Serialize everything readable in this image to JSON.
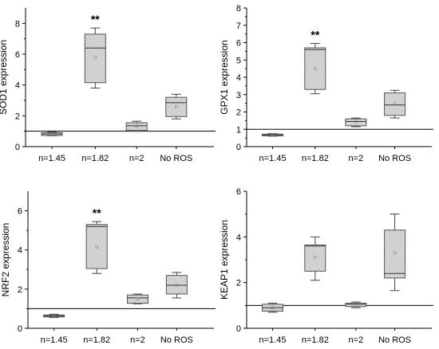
{
  "chart_data": [
    {
      "type": "box",
      "ylabel": "SOD1 expression",
      "ylim": [
        0,
        9
      ],
      "yticks": [
        0,
        2,
        4,
        6,
        8
      ],
      "reference_line": 1,
      "categories": [
        "n=1.45",
        "n=1.82",
        "n=2",
        "No ROS"
      ],
      "boxes": [
        {
          "min": 0.7,
          "q1": 0.72,
          "median": 0.82,
          "q3": 0.9,
          "max": 0.95,
          "mean": 0.8
        },
        {
          "min": 3.8,
          "q1": 4.15,
          "median": 6.4,
          "q3": 7.3,
          "max": 7.7,
          "mean": 5.8
        },
        {
          "min": 1.0,
          "q1": 1.05,
          "median": 1.35,
          "q3": 1.55,
          "max": 1.65,
          "mean": 1.35
        },
        {
          "min": 1.8,
          "q1": 1.95,
          "median": 2.85,
          "q3": 3.2,
          "max": 3.4,
          "mean": 2.6
        }
      ],
      "annotations": [
        {
          "category": "n=1.82",
          "text": "**"
        }
      ]
    },
    {
      "type": "box",
      "ylabel": "GPX1 expression",
      "ylim": [
        0,
        8
      ],
      "yticks": [
        0,
        1,
        2,
        3,
        4,
        5,
        6,
        7,
        8
      ],
      "reference_line": 1,
      "categories": [
        "n=1.45",
        "n=1.82",
        "n=2",
        "No ROS"
      ],
      "boxes": [
        {
          "min": 0.6,
          "q1": 0.62,
          "median": 0.68,
          "q3": 0.72,
          "max": 0.75,
          "mean": 0.67
        },
        {
          "min": 3.05,
          "q1": 3.3,
          "median": 5.6,
          "q3": 5.7,
          "max": 5.95,
          "mean": 4.5
        },
        {
          "min": 1.15,
          "q1": 1.2,
          "median": 1.45,
          "q3": 1.6,
          "max": 1.65,
          "mean": 1.45
        },
        {
          "min": 1.65,
          "q1": 1.8,
          "median": 2.4,
          "q3": 3.1,
          "max": 3.25,
          "mean": 2.5
        }
      ],
      "annotations": [
        {
          "category": "n=1.82",
          "text": "**"
        }
      ]
    },
    {
      "type": "box",
      "ylabel": "NRF2 expression",
      "ylim": [
        0,
        7
      ],
      "yticks": [
        0,
        2,
        4,
        6
      ],
      "reference_line": 1,
      "categories": [
        "n=1.45",
        "n=1.82",
        "n=2",
        "No ROS"
      ],
      "boxes": [
        {
          "min": 0.55,
          "q1": 0.58,
          "median": 0.63,
          "q3": 0.68,
          "max": 0.72,
          "mean": 0.63
        },
        {
          "min": 2.8,
          "q1": 3.05,
          "median": 5.2,
          "q3": 5.3,
          "max": 5.45,
          "mean": 4.15
        },
        {
          "min": 1.25,
          "q1": 1.28,
          "median": 1.55,
          "q3": 1.7,
          "max": 1.75,
          "mean": 1.5
        },
        {
          "min": 1.55,
          "q1": 1.75,
          "median": 2.2,
          "q3": 2.7,
          "max": 2.85,
          "mean": 2.2
        }
      ],
      "annotations": [
        {
          "category": "n=1.82",
          "text": "**"
        }
      ]
    },
    {
      "type": "box",
      "ylabel": "KEAP1 expression",
      "ylim": [
        0,
        6
      ],
      "yticks": [
        0,
        2,
        4,
        6
      ],
      "reference_line": 1,
      "categories": [
        "n=1.45",
        "n=1.82",
        "n=2",
        "No ROS"
      ],
      "boxes": [
        {
          "min": 0.7,
          "q1": 0.75,
          "median": 0.9,
          "q3": 1.05,
          "max": 1.1,
          "mean": 0.9
        },
        {
          "min": 2.1,
          "q1": 2.5,
          "median": 3.6,
          "q3": 3.65,
          "max": 4.0,
          "mean": 3.1
        },
        {
          "min": 0.9,
          "q1": 0.95,
          "median": 1.05,
          "q3": 1.1,
          "max": 1.15,
          "mean": 1.02
        },
        {
          "min": 1.65,
          "q1": 2.2,
          "median": 2.4,
          "q3": 4.3,
          "max": 5.0,
          "mean": 3.3
        }
      ],
      "annotations": []
    }
  ]
}
